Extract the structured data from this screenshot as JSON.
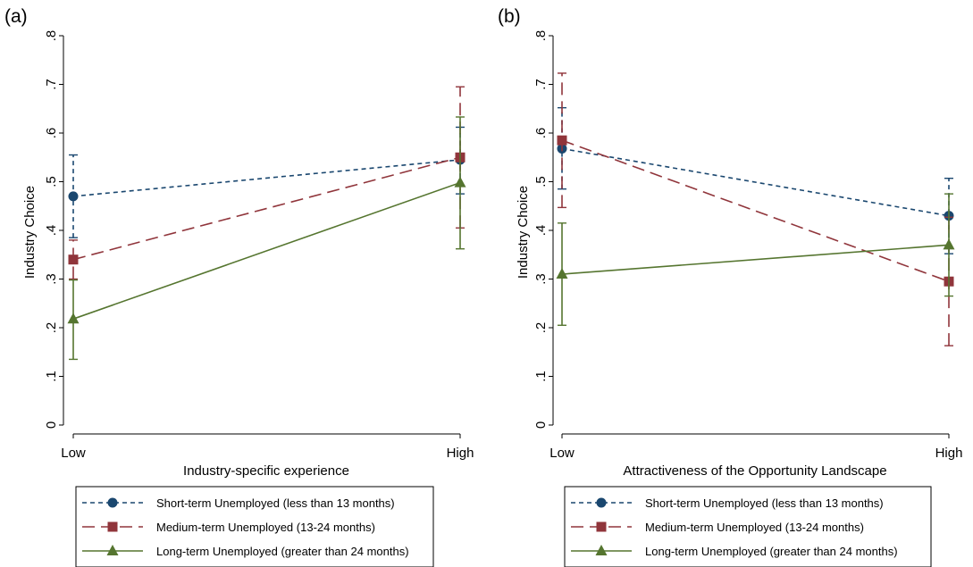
{
  "chart_data": [
    {
      "type": "line",
      "panel_label": "(a)",
      "xlabel": "Industry-specific experience",
      "ylabel": "Industry Choice",
      "categories": [
        "Low",
        "High"
      ],
      "yticks": [
        0,
        0.1,
        0.2,
        0.3,
        0.4,
        0.5,
        0.6,
        0.7,
        0.8
      ],
      "ytick_labels": [
        "0",
        ".1",
        ".2",
        ".3",
        ".4",
        ".5",
        ".6",
        ".7",
        ".8"
      ],
      "ylim": [
        0,
        0.8
      ],
      "grid": false,
      "legend_position": "bottom",
      "series": [
        {
          "name": "Short-term Unemployed (less than 13 months)",
          "color": "#1a476f",
          "marker": "circle",
          "dash": "short-dash",
          "values": [
            0.47,
            0.545
          ],
          "ci_low": [
            0.385,
            0.475
          ],
          "ci_high": [
            0.555,
            0.612
          ]
        },
        {
          "name": "Medium-term Unemployed (13-24 months)",
          "color": "#90353b",
          "marker": "square",
          "dash": "long-dash",
          "values": [
            0.34,
            0.55
          ],
          "ci_low": [
            0.3,
            0.405
          ],
          "ci_high": [
            0.38,
            0.695
          ]
        },
        {
          "name": "Long-term Unemployed (greater than 24 months)",
          "color": "#55752f",
          "marker": "triangle",
          "dash": "solid",
          "values": [
            0.218,
            0.498
          ],
          "ci_low": [
            0.135,
            0.362
          ],
          "ci_high": [
            0.298,
            0.633
          ]
        }
      ]
    },
    {
      "type": "line",
      "panel_label": "(b)",
      "xlabel": "Attractiveness of the Opportunity Landscape",
      "ylabel": "Industry Choice",
      "categories": [
        "Low",
        "High"
      ],
      "yticks": [
        0,
        0.1,
        0.2,
        0.3,
        0.4,
        0.5,
        0.6,
        0.7,
        0.8
      ],
      "ytick_labels": [
        "0",
        ".1",
        ".2",
        ".3",
        ".4",
        ".5",
        ".6",
        ".7",
        ".8"
      ],
      "ylim": [
        0,
        0.8
      ],
      "grid": false,
      "legend_position": "bottom",
      "series": [
        {
          "name": "Short-term Unemployed (less than 13 months)",
          "color": "#1a476f",
          "marker": "circle",
          "dash": "short-dash",
          "values": [
            0.568,
            0.43
          ],
          "ci_low": [
            0.485,
            0.352
          ],
          "ci_high": [
            0.652,
            0.507
          ]
        },
        {
          "name": "Medium-term Unemployed (13-24 months)",
          "color": "#90353b",
          "marker": "square",
          "dash": "long-dash",
          "values": [
            0.585,
            0.295
          ],
          "ci_low": [
            0.447,
            0.163
          ],
          "ci_high": [
            0.723,
            0.427
          ]
        },
        {
          "name": "Long-term Unemployed (greater than 24 months)",
          "color": "#55752f",
          "marker": "triangle",
          "dash": "solid",
          "values": [
            0.31,
            0.37
          ],
          "ci_low": [
            0.205,
            0.265
          ],
          "ci_high": [
            0.415,
            0.475
          ]
        }
      ]
    }
  ]
}
